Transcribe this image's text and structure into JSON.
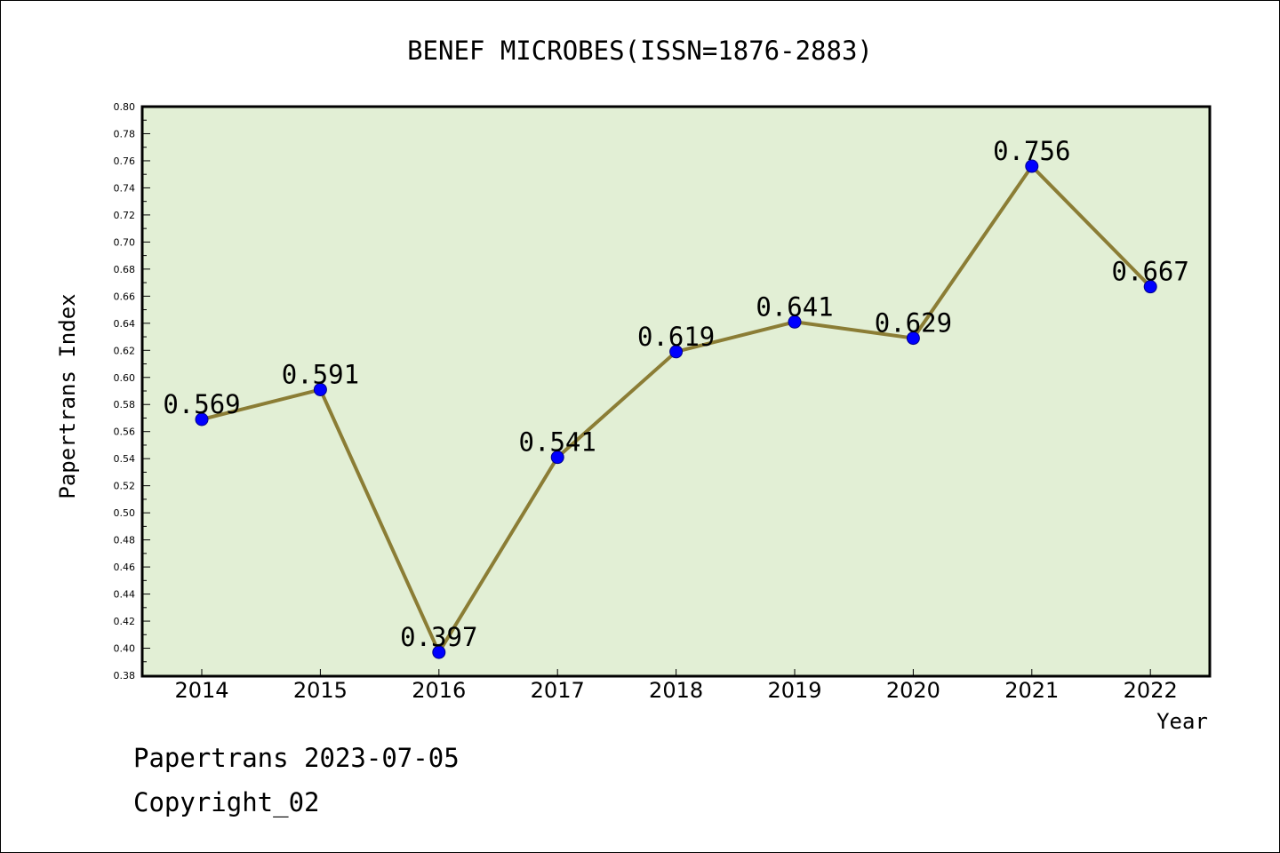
{
  "chart_data": {
    "type": "line",
    "title": "BENEF MICROBES(ISSN=1876-2883)",
    "xlabel": "Year",
    "ylabel": "Papertrans Index",
    "categories": [
      "2014",
      "2015",
      "2016",
      "2017",
      "2018",
      "2019",
      "2020",
      "2021",
      "2022"
    ],
    "series": [
      {
        "name": "Papertrans Index",
        "values": [
          0.569,
          0.591,
          0.397,
          0.541,
          0.619,
          0.641,
          0.629,
          0.756,
          0.667
        ],
        "labels": [
          "0.569",
          "0.591",
          "0.397",
          "0.541",
          "0.619",
          "0.641",
          "0.629",
          "0.756",
          "0.667"
        ]
      }
    ],
    "ylim": [
      0.38,
      0.8
    ],
    "yticks": [
      "0.38",
      "0.40",
      "0.42",
      "0.44",
      "0.46",
      "0.48",
      "0.50",
      "0.52",
      "0.54",
      "0.56",
      "0.58",
      "0.60",
      "0.62",
      "0.64",
      "0.66",
      "0.68",
      "0.70",
      "0.72",
      "0.74",
      "0.76",
      "0.78",
      "0.80"
    ],
    "grid": false,
    "colors": {
      "plot_background": "#e2efd5",
      "line": "#8b7d35",
      "marker": "#0000ff"
    }
  },
  "footer": {
    "date_line": "Papertrans 2023-07-05",
    "copyright": "Copyright_02"
  }
}
